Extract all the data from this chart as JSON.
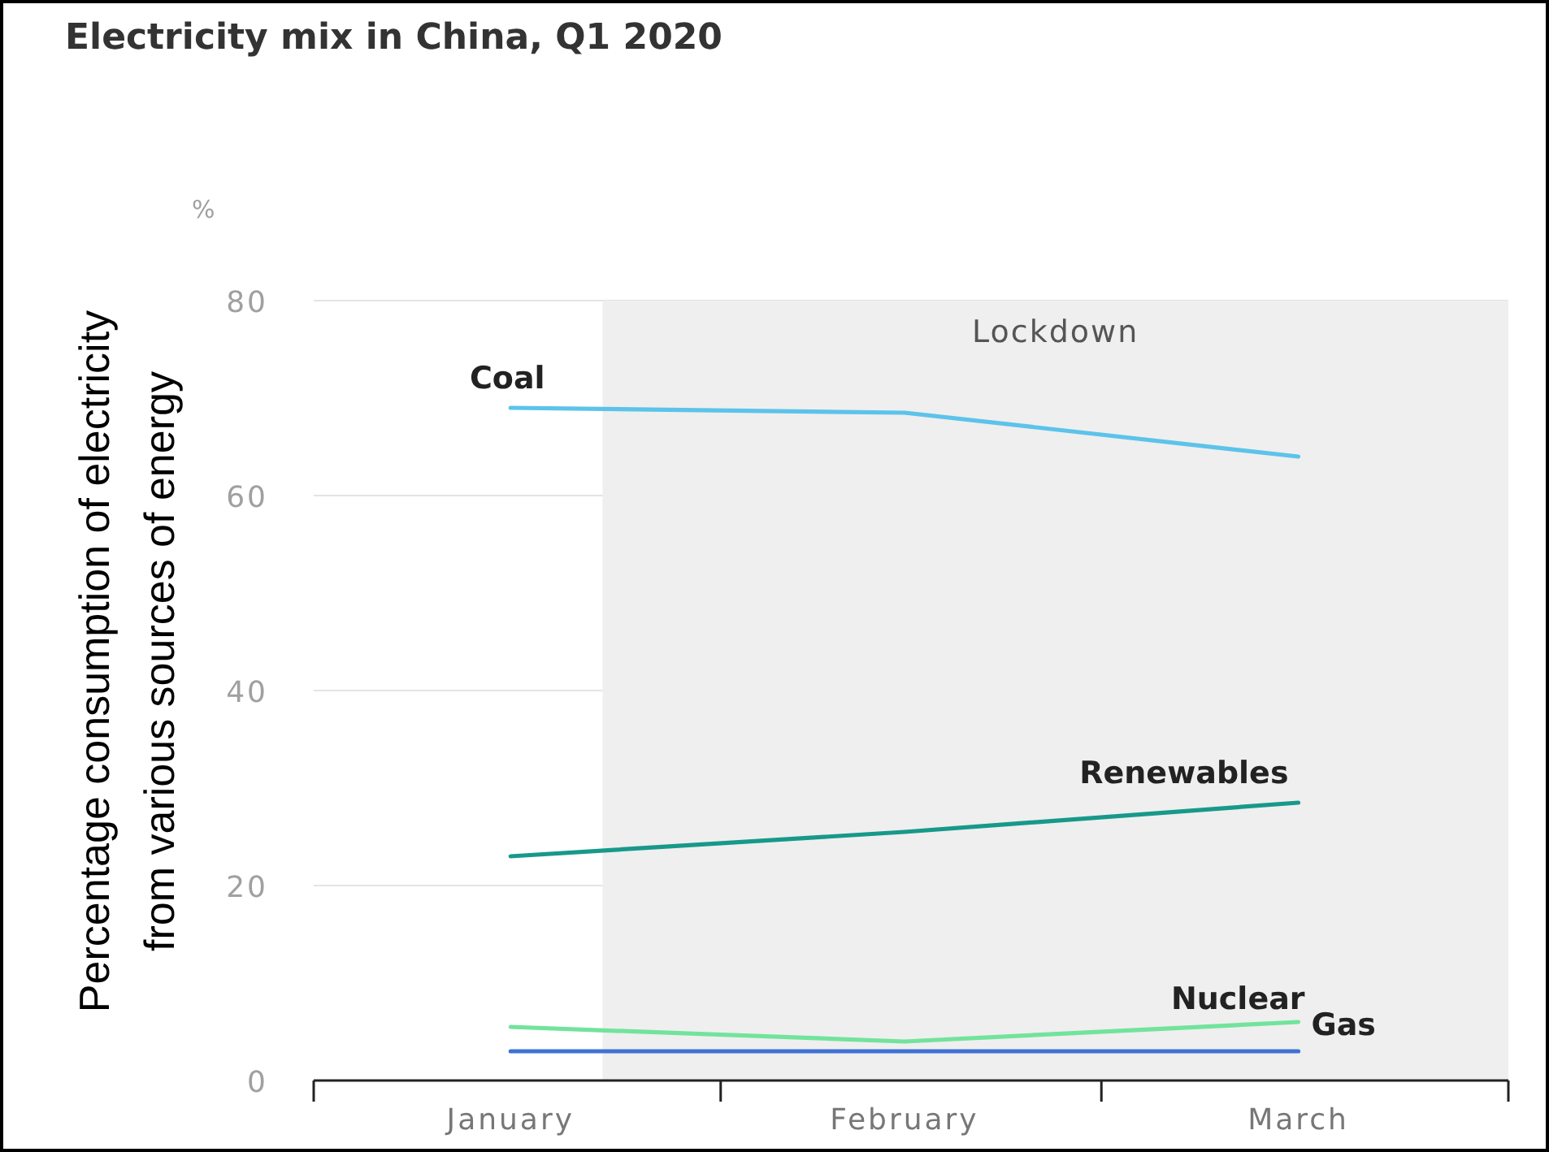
{
  "chart_data": {
    "type": "line",
    "title": "Electricity mix in China, Q1 2020",
    "ylabel": "Percentage consumption of electricity from various sources of energy",
    "annotations": [
      "%"
    ],
    "x": [
      "2020-01-16",
      "2020-02-15",
      "2020-03-16"
    ],
    "series": [
      {
        "name": "Coal",
        "color": "#5cc3ea",
        "values": [
          69,
          68.5,
          64
        ]
      },
      {
        "name": "Renewables",
        "color": "#17998a",
        "values": [
          23,
          25.5,
          28.5
        ]
      },
      {
        "name": "Nuclear",
        "color": "#72e39c",
        "values": [
          5.5,
          4,
          6
        ]
      },
      {
        "name": "Gas",
        "color": "#3f72d6",
        "values": [
          3,
          3,
          3
        ]
      }
    ],
    "xlim": [
      "2020-01-01",
      "2020-04-01"
    ],
    "xticks": [
      {
        "value": "2020-01-01",
        "label": null
      },
      {
        "value": "2020-01-16",
        "label": "January"
      },
      {
        "value": "2020-02-01",
        "label": null
      },
      {
        "value": "2020-02-15",
        "label": "February"
      },
      {
        "value": "2020-03-01",
        "label": null
      },
      {
        "value": "2020-03-16",
        "label": "March"
      },
      {
        "value": "2020-04-01",
        "label": null
      }
    ],
    "ylim": [
      0,
      80
    ],
    "yticks": [
      0,
      20,
      40,
      60,
      80
    ],
    "grid": "y",
    "bands": [
      {
        "axis": "x",
        "from": "2020-01-23",
        "to": "2020-04-01",
        "label": "Lockdown",
        "color": "#efefef"
      }
    ],
    "marker": "none",
    "line_style": "solid"
  }
}
